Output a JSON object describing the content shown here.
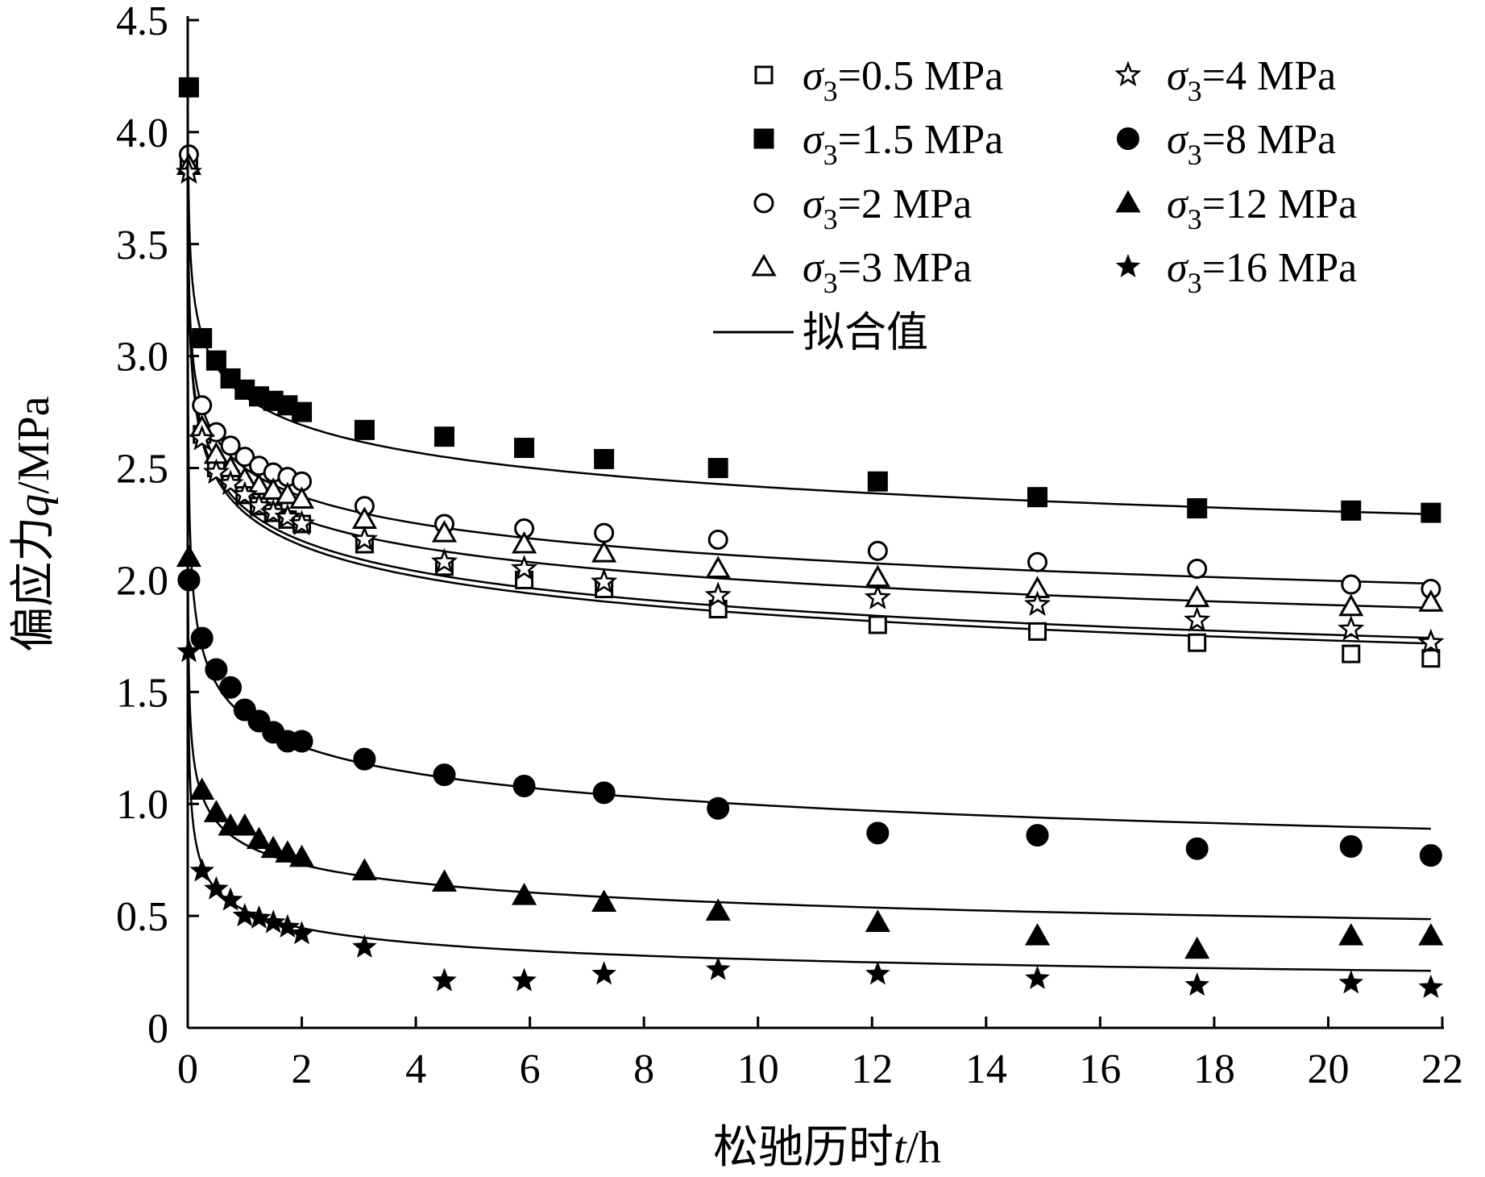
{
  "chart_data": {
    "type": "scatter",
    "title": "",
    "xlabel": "松驰历时t/h",
    "ylabel": "偏应力q/MPa",
    "xlim": [
      0,
      22
    ],
    "ylim": [
      0,
      4.5
    ],
    "x_ticks": [
      "0",
      "2",
      "4",
      "6",
      "8",
      "10",
      "12",
      "14",
      "16",
      "18",
      "20",
      "22"
    ],
    "y_ticks": [
      "0",
      "0.5",
      "1.0",
      "1.5",
      "2.0",
      "2.5",
      "3.0",
      "3.5",
      "4.0",
      "4.5"
    ],
    "grid": false,
    "legend_position": "top-right",
    "fit_label": "拟合值",
    "series": [
      {
        "name": "σ3=0.5 MPa",
        "marker": "square-open",
        "x": [
          0.02,
          0.25,
          0.5,
          0.75,
          1.0,
          1.25,
          1.5,
          1.75,
          2.0,
          3.1,
          4.5,
          5.9,
          7.3,
          9.3,
          12.1,
          14.9,
          17.7,
          20.4,
          21.8
        ],
        "y": [
          3.85,
          2.65,
          2.5,
          2.45,
          2.38,
          2.33,
          2.3,
          2.27,
          2.25,
          2.16,
          2.06,
          2.0,
          1.96,
          1.87,
          1.8,
          1.77,
          1.72,
          1.67,
          1.65
        ],
        "fit": {
          "a": 2.3,
          "b": 0.095
        }
      },
      {
        "name": "σ3=1.5 MPa",
        "marker": "square-filled",
        "x": [
          0.02,
          0.25,
          0.5,
          0.75,
          1.0,
          1.25,
          1.5,
          1.75,
          2.0,
          3.1,
          4.5,
          5.9,
          7.3,
          9.3,
          12.1,
          14.9,
          17.7,
          20.4,
          21.8
        ],
        "y": [
          4.2,
          3.08,
          2.98,
          2.9,
          2.85,
          2.82,
          2.8,
          2.78,
          2.75,
          2.67,
          2.64,
          2.59,
          2.54,
          2.5,
          2.44,
          2.37,
          2.32,
          2.31,
          2.3
        ],
        "fit": {
          "a": 2.82,
          "b": 0.067
        }
      },
      {
        "name": "σ3=2 MPa",
        "marker": "circle-open",
        "x": [
          0.02,
          0.25,
          0.5,
          0.75,
          1.0,
          1.25,
          1.5,
          1.75,
          2.0,
          3.1,
          4.5,
          5.9,
          7.3,
          9.3,
          12.1,
          14.9,
          17.7,
          20.4,
          21.8
        ],
        "y": [
          3.9,
          2.78,
          2.66,
          2.6,
          2.55,
          2.51,
          2.48,
          2.46,
          2.44,
          2.33,
          2.25,
          2.23,
          2.21,
          2.18,
          2.13,
          2.08,
          2.05,
          1.98,
          1.96
        ],
        "fit": {
          "a": 2.5,
          "b": 0.075
        }
      },
      {
        "name": "σ3=3 MPa",
        "marker": "triangle-open",
        "x": [
          0.02,
          0.25,
          0.5,
          0.75,
          1.0,
          1.25,
          1.5,
          1.75,
          2.0,
          3.1,
          4.5,
          5.9,
          7.3,
          9.3,
          12.1,
          14.9,
          17.7,
          20.4,
          21.8
        ],
        "y": [
          3.85,
          2.68,
          2.56,
          2.5,
          2.45,
          2.42,
          2.4,
          2.38,
          2.36,
          2.27,
          2.21,
          2.16,
          2.12,
          2.05,
          2.01,
          1.96,
          1.92,
          1.88,
          1.9
        ],
        "fit": {
          "a": 2.4,
          "b": 0.08
        }
      },
      {
        "name": "σ3=4 MPa",
        "marker": "star-open",
        "x": [
          0.02,
          0.25,
          0.5,
          0.75,
          1.0,
          1.25,
          1.5,
          1.75,
          2.0,
          3.1,
          4.5,
          5.9,
          7.3,
          9.3,
          12.1,
          14.9,
          17.7,
          20.4,
          21.8
        ],
        "y": [
          3.82,
          2.63,
          2.48,
          2.43,
          2.38,
          2.33,
          2.3,
          2.28,
          2.25,
          2.18,
          2.08,
          2.05,
          1.99,
          1.93,
          1.92,
          1.89,
          1.82,
          1.78,
          1.72
        ],
        "fit": {
          "a": 2.32,
          "b": 0.093
        }
      },
      {
        "name": "σ3=8 MPa",
        "marker": "circle-filled",
        "x": [
          0.02,
          0.25,
          0.5,
          0.75,
          1.0,
          1.25,
          1.5,
          1.75,
          2.0,
          3.1,
          4.5,
          5.9,
          7.3,
          9.3,
          12.1,
          14.9,
          17.7,
          20.4,
          21.8
        ],
        "y": [
          2.0,
          1.74,
          1.6,
          1.52,
          1.42,
          1.37,
          1.32,
          1.28,
          1.28,
          1.2,
          1.13,
          1.08,
          1.05,
          0.98,
          0.87,
          0.86,
          0.8,
          0.81,
          0.77
        ],
        "fit": {
          "a": 1.39,
          "b": 0.145
        }
      },
      {
        "name": "σ3=12 MPa",
        "marker": "triangle-filled",
        "x": [
          0.02,
          0.25,
          0.5,
          0.75,
          1.0,
          1.25,
          1.5,
          1.75,
          2.0,
          3.1,
          4.5,
          5.9,
          7.3,
          9.3,
          12.1,
          14.9,
          17.7,
          20.4,
          21.8
        ],
        "y": [
          2.1,
          1.06,
          0.96,
          0.9,
          0.9,
          0.84,
          0.8,
          0.78,
          0.76,
          0.7,
          0.65,
          0.59,
          0.56,
          0.52,
          0.47,
          0.41,
          0.35,
          0.41,
          0.41
        ],
        "fit": {
          "a": 0.82,
          "b": 0.17
        }
      },
      {
        "name": "σ3=16 MPa",
        "marker": "star-filled",
        "x": [
          0.02,
          0.25,
          0.5,
          0.75,
          1.0,
          1.25,
          1.5,
          1.75,
          2.0,
          3.1,
          4.5,
          5.9,
          7.3,
          9.3,
          12.1,
          14.9,
          17.7,
          20.4,
          21.8
        ],
        "y": [
          1.68,
          0.7,
          0.62,
          0.57,
          0.5,
          0.49,
          0.47,
          0.45,
          0.42,
          0.36,
          0.21,
          0.21,
          0.24,
          0.26,
          0.24,
          0.22,
          0.19,
          0.2,
          0.18
        ],
        "fit": {
          "a": 0.525,
          "b": 0.235
        }
      }
    ]
  }
}
